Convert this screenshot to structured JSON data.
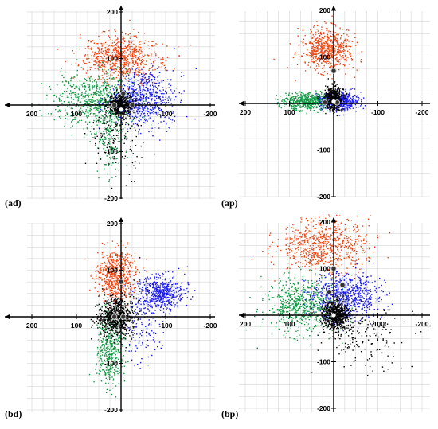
{
  "figure": {
    "panels": [
      {
        "id": "ad",
        "label": "(ad)"
      },
      {
        "id": "ap",
        "label": "(ap)"
      },
      {
        "id": "bd",
        "label": "(bd)"
      },
      {
        "id": "bp",
        "label": "(bp)"
      }
    ]
  },
  "colors": {
    "orange": "#ee4411",
    "green": "#119944",
    "blue": "#1a1aee",
    "black": "#000000",
    "grid": "#cccccc"
  },
  "chart_data": [
    {
      "type": "scatter",
      "panel": "ad",
      "xlim": [
        200,
        -200
      ],
      "ylim": [
        -200,
        200
      ],
      "xticks": [
        "200",
        "100",
        "-100",
        "-200"
      ],
      "yticks": [
        "200",
        "100",
        "-100",
        "-200"
      ],
      "grid": true,
      "clusters": [
        {
          "color": "orange",
          "center": [
            0,
            100
          ],
          "spread": [
            45,
            25
          ],
          "count": 700
        },
        {
          "color": "green",
          "center": [
            60,
            10
          ],
          "spread": [
            45,
            30
          ],
          "count": 600
        },
        {
          "color": "green",
          "center": [
            25,
            -60
          ],
          "spread": [
            15,
            45
          ],
          "count": 200
        },
        {
          "color": "blue",
          "center": [
            -50,
            15
          ],
          "spread": [
            35,
            30
          ],
          "count": 650
        },
        {
          "color": "black",
          "center": [
            0,
            0
          ],
          "spread": [
            14,
            14
          ],
          "count": 500
        },
        {
          "color": "black",
          "center": [
            10,
            -70
          ],
          "spread": [
            30,
            40
          ],
          "count": 150
        }
      ],
      "markers": [
        [
          -5,
          25
        ],
        [
          15,
          0
        ],
        [
          -25,
          0
        ],
        [
          0,
          -10
        ]
      ]
    },
    {
      "type": "scatter",
      "panel": "ap",
      "xlim": [
        200,
        -200
      ],
      "ylim": [
        -200,
        200
      ],
      "xticks": [
        "200",
        "100",
        "-100",
        "-200"
      ],
      "yticks": [
        "200",
        "100",
        "-100",
        "-200"
      ],
      "grid": true,
      "clusters": [
        {
          "color": "orange",
          "center": [
            15,
            115
          ],
          "spread": [
            28,
            22
          ],
          "count": 650
        },
        {
          "color": "green",
          "center": [
            55,
            5
          ],
          "spread": [
            30,
            9
          ],
          "count": 550
        },
        {
          "color": "blue",
          "center": [
            -15,
            5
          ],
          "spread": [
            22,
            9
          ],
          "count": 500
        },
        {
          "color": "black",
          "center": [
            0,
            10
          ],
          "spread": [
            10,
            13
          ],
          "count": 500
        }
      ],
      "markers": [
        [
          0,
          70
        ],
        [
          20,
          2
        ],
        [
          -8,
          2
        ],
        [
          0,
          4
        ]
      ]
    },
    {
      "type": "scatter",
      "panel": "bd",
      "xlim": [
        200,
        -200
      ],
      "ylim": [
        -200,
        200
      ],
      "xticks": [
        "200",
        "100",
        "-100",
        "-200"
      ],
      "yticks": [
        "200",
        "100",
        "-100",
        "-200"
      ],
      "grid": true,
      "clusters": [
        {
          "color": "orange",
          "center": [
            10,
            90
          ],
          "spread": [
            22,
            28
          ],
          "count": 600
        },
        {
          "color": "blue",
          "center": [
            -90,
            50
          ],
          "spread": [
            25,
            18
          ],
          "count": 550
        },
        {
          "color": "blue",
          "center": [
            -50,
            -20
          ],
          "spread": [
            20,
            40
          ],
          "count": 120
        },
        {
          "color": "green",
          "center": [
            25,
            -70
          ],
          "spread": [
            15,
            40
          ],
          "count": 450
        },
        {
          "color": "black",
          "center": [
            10,
            0
          ],
          "spread": [
            20,
            22
          ],
          "count": 650
        }
      ],
      "markers": [
        [
          0,
          75
        ],
        [
          15,
          0
        ],
        [
          -5,
          0
        ]
      ]
    },
    {
      "type": "scatter",
      "panel": "bp",
      "xlim": [
        200,
        -200
      ],
      "ylim": [
        -200,
        200
      ],
      "xticks": [
        "200",
        "100",
        "-100",
        "-200"
      ],
      "yticks": [
        "200",
        "100",
        "-100",
        "-200"
      ],
      "grid": true,
      "clusters": [
        {
          "color": "orange",
          "center": [
            20,
            150
          ],
          "spread": [
            50,
            30
          ],
          "count": 700
        },
        {
          "color": "green",
          "center": [
            70,
            20
          ],
          "spread": [
            40,
            30
          ],
          "count": 650
        },
        {
          "color": "blue",
          "center": [
            -30,
            40
          ],
          "spread": [
            40,
            25
          ],
          "count": 650
        },
        {
          "color": "black",
          "center": [
            -5,
            0
          ],
          "spread": [
            15,
            15
          ],
          "count": 650
        },
        {
          "color": "black",
          "center": [
            -70,
            -50
          ],
          "spread": [
            50,
            35
          ],
          "count": 180
        }
      ],
      "markers": [
        [
          0,
          100
        ],
        [
          -20,
          65
        ],
        [
          10,
          50
        ],
        [
          0,
          0
        ]
      ]
    }
  ]
}
